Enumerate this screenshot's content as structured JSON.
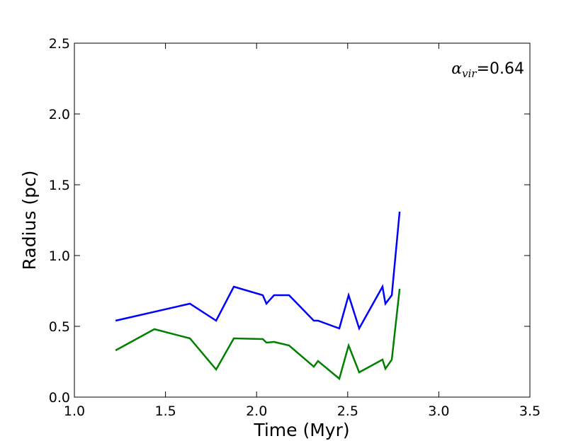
{
  "chart_data": {
    "type": "line",
    "x_label": "Time (Myr)",
    "y_label": "Radius (pc)",
    "annotation": {
      "symbol": "α",
      "subscript": "vir",
      "text": "=0.64"
    },
    "xlim": [
      1.0,
      3.5
    ],
    "ylim": [
      0,
      2.5
    ],
    "xticks": [
      {
        "value": 1.0,
        "label": "1.0"
      },
      1.5,
      {
        "value": 2.0,
        "label": "2.0"
      },
      2.5,
      {
        "value": 3.0,
        "label": "3.0"
      },
      3.5
    ],
    "yticks": [
      {
        "value": 0,
        "label": "0.0"
      },
      0.5,
      {
        "value": 1.0,
        "label": "1.0"
      },
      1.5,
      {
        "value": 2.0,
        "label": "2.0"
      },
      2.5
    ],
    "series": [
      {
        "color": "#0000ff",
        "x": [
          1.226,
          1.634,
          1.778,
          1.875,
          2.034,
          2.054,
          2.096,
          2.178,
          2.314,
          2.337,
          2.454,
          2.505,
          2.563,
          2.691,
          2.707,
          2.742,
          2.785
        ],
        "values": [
          0.54,
          0.66,
          0.54,
          0.78,
          0.72,
          0.66,
          0.72,
          0.72,
          0.54,
          0.54,
          0.485,
          0.72,
          0.485,
          0.78,
          0.66,
          0.72,
          1.31
        ]
      },
      {
        "color": "#008000",
        "x": [
          1.226,
          1.439,
          1.634,
          1.778,
          1.875,
          2.034,
          2.054,
          2.096,
          2.178,
          2.314,
          2.337,
          2.454,
          2.505,
          2.563,
          2.691,
          2.707,
          2.742,
          2.785
        ],
        "values": [
          0.33,
          0.48,
          0.415,
          0.195,
          0.415,
          0.41,
          0.385,
          0.39,
          0.365,
          0.215,
          0.255,
          0.13,
          0.365,
          0.175,
          0.265,
          0.2,
          0.265,
          0.765
        ]
      }
    ]
  }
}
